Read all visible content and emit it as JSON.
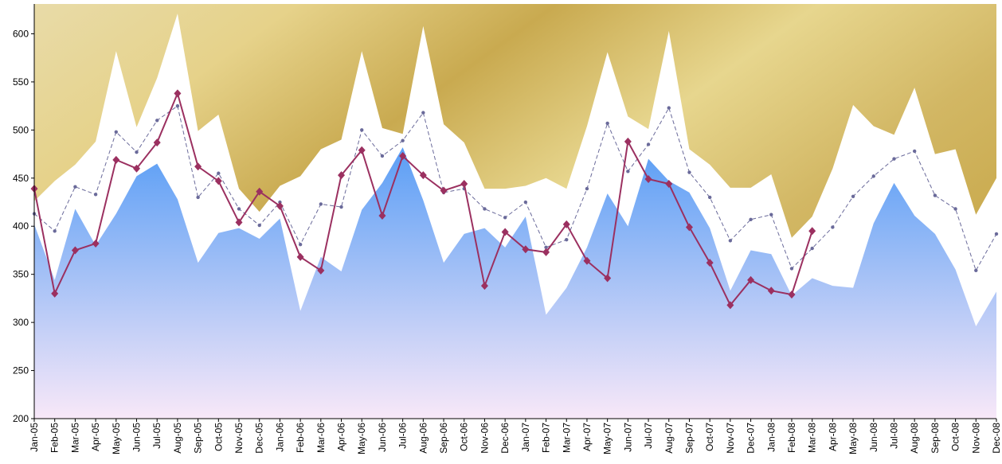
{
  "chart_data": {
    "type": "area",
    "categories": [
      "Jan-05",
      "Feb-05",
      "Mar-05",
      "Apr-05",
      "May-05",
      "Jun-05",
      "Jul-05",
      "Aug-05",
      "Sep-05",
      "Oct-05",
      "Nov-05",
      "Dec-05",
      "Jan-06",
      "Feb-06",
      "Mar-06",
      "Apr-06",
      "May-06",
      "Jun-06",
      "Jul-06",
      "Aug-06",
      "Sep-06",
      "Oct-06",
      "Nov-06",
      "Dec-06",
      "Jan-07",
      "Feb-07",
      "Mar-07",
      "Apr-07",
      "May-07",
      "Jun-07",
      "Jul-07",
      "Aug-07",
      "Sep-07",
      "Oct-07",
      "Nov-07",
      "Dec-07",
      "Jan-08",
      "Feb-08",
      "Mar-08",
      "Apr-08",
      "May-08",
      "Jun-08",
      "Jul-08",
      "Aug-08",
      "Sep-08",
      "Oct-08",
      "Nov-08",
      "Dec-08"
    ],
    "series": [
      {
        "style": "area",
        "color": "#ffffff",
        "values": [
          426,
          447,
          464,
          488,
          582,
          503,
          554,
          621,
          499,
          516,
          439,
          415,
          442,
          452,
          480,
          490,
          582,
          502,
          496,
          608,
          506,
          487,
          439,
          439,
          442,
          450,
          439,
          504,
          581,
          514,
          501,
          603,
          480,
          464,
          440,
          440,
          454,
          388,
          410,
          460,
          526,
          504,
          495,
          544,
          475,
          480,
          412,
          450
        ]
      },
      {
        "style": "area",
        "color": "#5a9ef5",
        "values": [
          402,
          344,
          418,
          380,
          413,
          452,
          465,
          428,
          362,
          393,
          398,
          387,
          408,
          312,
          368,
          353,
          417,
          445,
          482,
          427,
          362,
          392,
          398,
          378,
          410,
          308,
          336,
          378,
          434,
          400,
          470,
          447,
          435,
          398,
          333,
          375,
          371,
          328,
          346,
          338,
          336,
          403,
          445,
          411,
          392,
          355,
          296,
          332
        ]
      },
      {
        "style": "dashed-line",
        "color": "#6a6a9a",
        "values": [
          413,
          395,
          441,
          433,
          498,
          477,
          510,
          525,
          430,
          455,
          418,
          401,
          425,
          381,
          423,
          420,
          500,
          473,
          489,
          518,
          435,
          439,
          418,
          409,
          425,
          378,
          386,
          439,
          507,
          457,
          485,
          523,
          456,
          430,
          385,
          407,
          412,
          356,
          377,
          399,
          431,
          452,
          470,
          478,
          432,
          418,
          354,
          392
        ]
      },
      {
        "style": "marker-line",
        "color": "#9b3060",
        "values": [
          439,
          330,
          375,
          382,
          469,
          460,
          487,
          538,
          462,
          447,
          404,
          436,
          421,
          368,
          354,
          453,
          479,
          411,
          473,
          453,
          437,
          444,
          338,
          394,
          376,
          373,
          402,
          364,
          346,
          488,
          449,
          444,
          399,
          362,
          318,
          344,
          333,
          329,
          395,
          null,
          null,
          null,
          null,
          null,
          null,
          null,
          null,
          null
        ]
      }
    ],
    "ylim": [
      200,
      631
    ],
    "yticks": [
      200,
      250,
      300,
      350,
      400,
      450,
      500,
      550,
      600
    ]
  }
}
